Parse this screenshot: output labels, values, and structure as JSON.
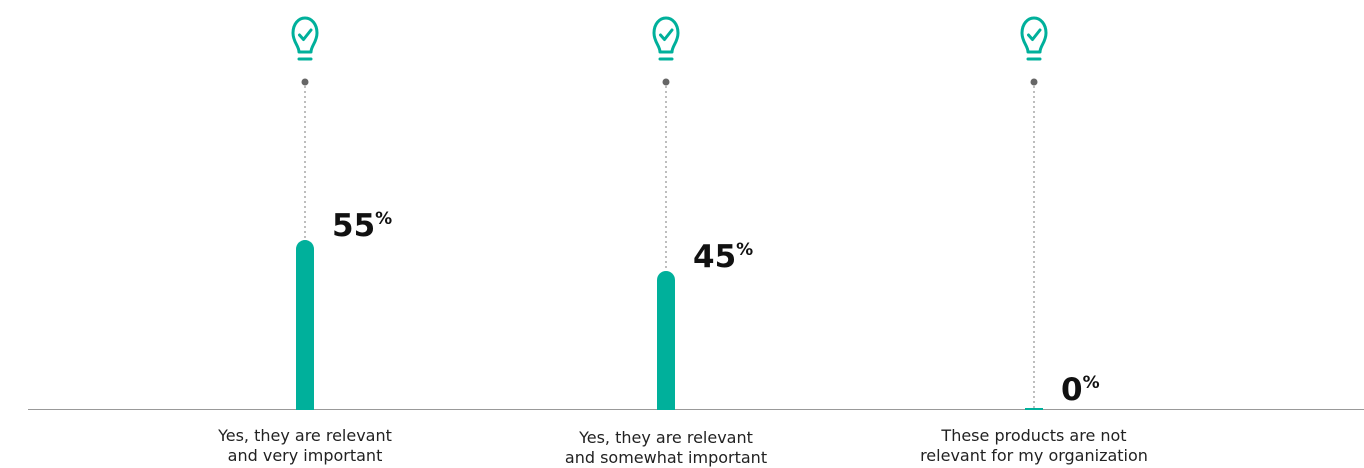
{
  "chart_data": {
    "type": "bar",
    "categories": [
      [
        "Yes, they are relevant",
        "and very important"
      ],
      [
        "Yes, they are relevant",
        "and somewhat important"
      ],
      [
        "These products are not",
        "relevant for my organization"
      ]
    ],
    "values": [
      55,
      45,
      0
    ],
    "unit": "%",
    "ylim": [
      0,
      100
    ],
    "grid": false,
    "legend": "none",
    "icon": "lightbulb-check-icon"
  },
  "colors": {
    "bar": "#00b09b",
    "icon": "#00b09b",
    "axis": "#999999",
    "leader": "#9a9a9a",
    "dot": "#666666",
    "text": "#111111"
  }
}
